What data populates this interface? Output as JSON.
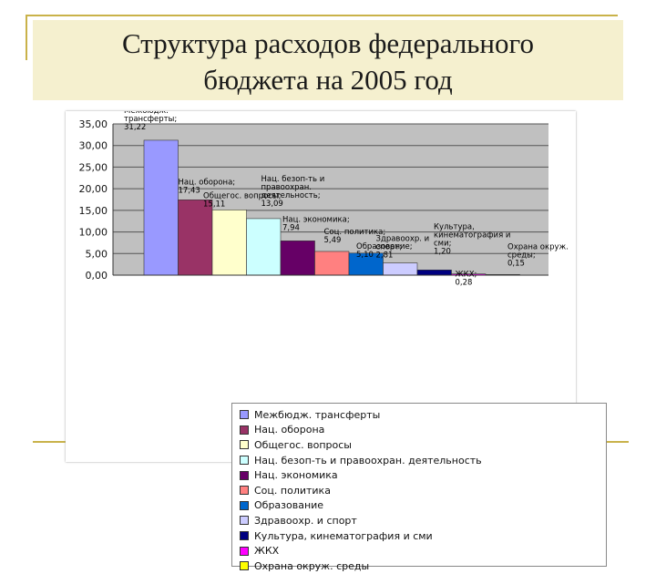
{
  "slide": {
    "title_line1": "Структура расходов федерального",
    "title_line2": "бюджета на 2005 год"
  },
  "chart_data": {
    "type": "bar",
    "ylim": [
      0,
      35
    ],
    "y_ticks": [
      "0,00",
      "5,00",
      "10,00",
      "15,00",
      "20,00",
      "25,00",
      "30,00",
      "35,00"
    ],
    "grid": true,
    "legend_position": "bottom",
    "series": [
      {
        "name": "Межбюдж. трансферты",
        "value": 31.22,
        "label": "Межбюдж. трансферты; 31,22",
        "color": "#9999ff"
      },
      {
        "name": "Нац. оборона",
        "value": 17.43,
        "label": "Нац. оборона; 17,43",
        "color": "#993366"
      },
      {
        "name": "Общегос. вопросы",
        "value": 15.11,
        "label": "Общегос. вопросы; 15,11",
        "color": "#ffffcc"
      },
      {
        "name": "Нац. безоп-ть и правоохран. деятельность",
        "value": 13.09,
        "label": "Нац. безоп-ть и правоохран. деятельность; 13,09",
        "color": "#ccffff"
      },
      {
        "name": "Нац. экономика",
        "value": 7.94,
        "label": "Нац. экономика; 7,94",
        "color": "#660066"
      },
      {
        "name": "Соц. политика",
        "value": 5.49,
        "label": "Соц. политика; 5,49",
        "color": "#ff8080"
      },
      {
        "name": "Образование",
        "value": 5.1,
        "label": "Образование; 5,10",
        "color": "#0066cc"
      },
      {
        "name": "Здравоохр. и спорт",
        "value": 2.81,
        "label": "Здравоохр. и спорт; 2,81",
        "color": "#ccccff"
      },
      {
        "name": "Культура, кинематография и сми",
        "value": 1.2,
        "label": "Культура, кинематография и сми; 1,20",
        "color": "#000080"
      },
      {
        "name": "ЖКХ",
        "value": 0.28,
        "label": "ЖКХ; 0,28",
        "color": "#ff00ff"
      },
      {
        "name": "Охрана окруж. среды",
        "value": 0.15,
        "label": "Охрана окруж. среды; 0,15",
        "color": "#ffff00"
      }
    ]
  }
}
